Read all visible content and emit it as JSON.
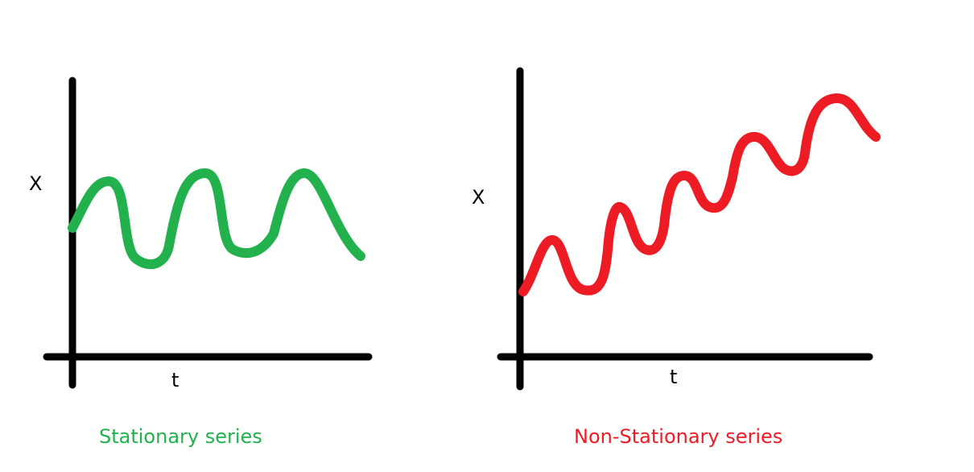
{
  "colors": {
    "background": "#ffffff",
    "axis": "#000000",
    "stationary": "#22b14c",
    "non_stationary": "#ed1c24"
  },
  "left_panel": {
    "y_label": "X",
    "x_label": "t",
    "caption": "Stationary series"
  },
  "right_panel": {
    "y_label": "X",
    "x_label": "t",
    "caption": "Non-Stationary series"
  }
}
